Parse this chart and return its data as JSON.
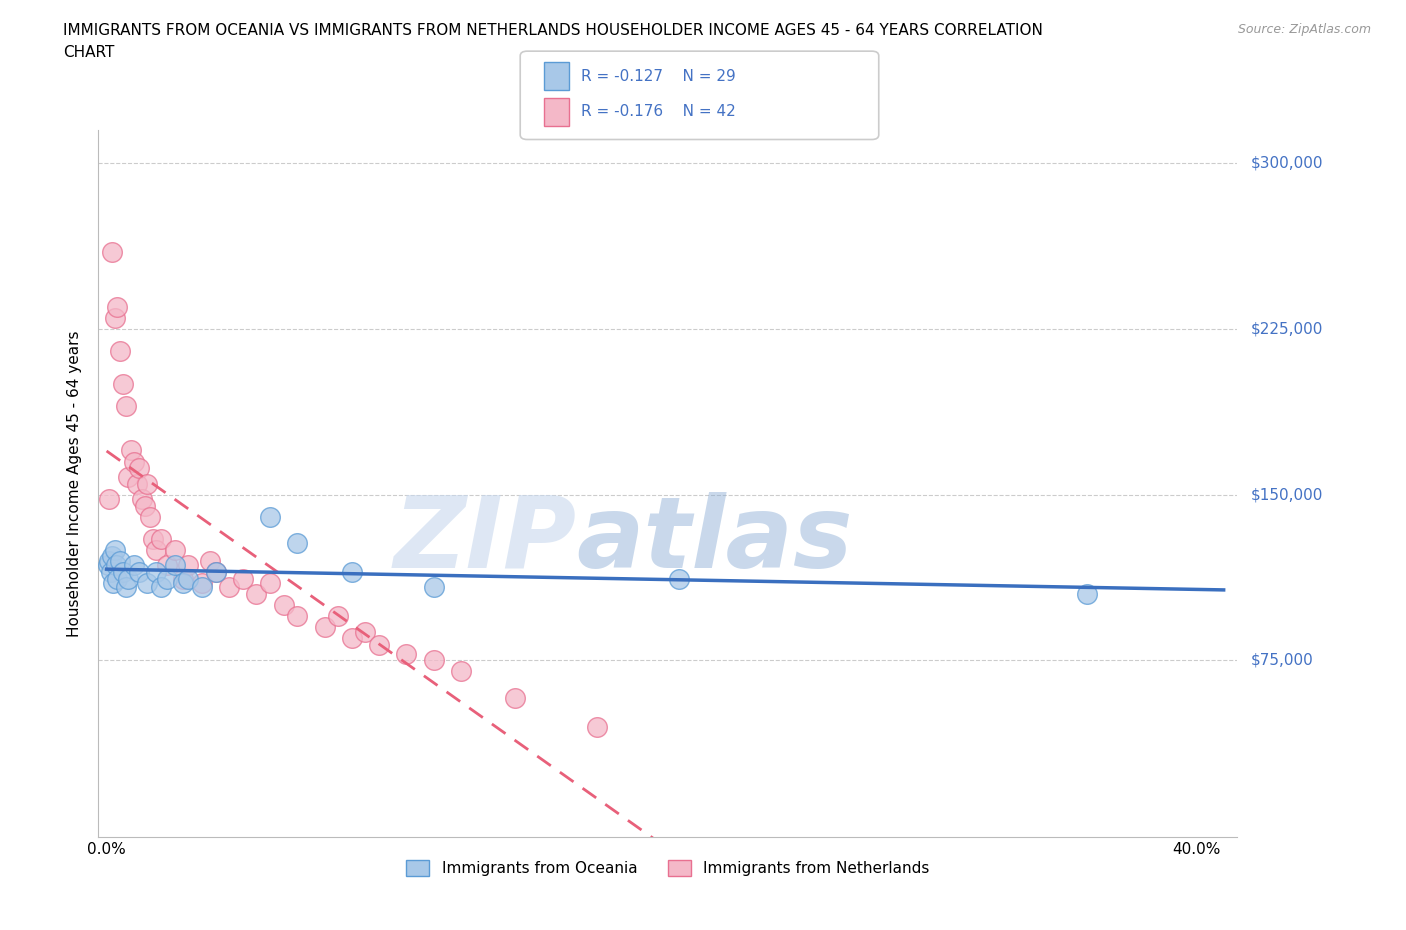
{
  "title_line1": "IMMIGRANTS FROM OCEANIA VS IMMIGRANTS FROM NETHERLANDS HOUSEHOLDER INCOME AGES 45 - 64 YEARS CORRELATION",
  "title_line2": "CHART",
  "source": "Source: ZipAtlas.com",
  "ylabel": "Householder Income Ages 45 - 64 years",
  "y_ticks": [
    0,
    75000,
    150000,
    225000,
    300000
  ],
  "y_tick_labels": [
    "",
    "$75,000",
    "$150,000",
    "$225,000",
    "$300,000"
  ],
  "ylim": [
    -5000,
    315000
  ],
  "xlim": [
    -0.003,
    0.415
  ],
  "color_oceania_fill": "#a8c8e8",
  "color_oceania_edge": "#5b9bd5",
  "color_netherlands_fill": "#f4b8c8",
  "color_netherlands_edge": "#e87090",
  "color_oceania_line": "#3a6fbf",
  "color_netherlands_line": "#e8607a",
  "color_text_blue": "#4472c4",
  "color_grid": "#cccccc",
  "watermark_zip": "ZIP",
  "watermark_atlas": "atlas",
  "legend_labels": [
    "Immigrants from Oceania",
    "Immigrants from Netherlands"
  ],
  "oceania_points": [
    [
      0.0005,
      118000
    ],
    [
      0.001,
      120000
    ],
    [
      0.0015,
      115000
    ],
    [
      0.002,
      122000
    ],
    [
      0.0025,
      110000
    ],
    [
      0.003,
      125000
    ],
    [
      0.0035,
      118000
    ],
    [
      0.004,
      112000
    ],
    [
      0.005,
      120000
    ],
    [
      0.006,
      115000
    ],
    [
      0.007,
      108000
    ],
    [
      0.008,
      112000
    ],
    [
      0.01,
      118000
    ],
    [
      0.012,
      115000
    ],
    [
      0.015,
      110000
    ],
    [
      0.018,
      115000
    ],
    [
      0.02,
      108000
    ],
    [
      0.022,
      112000
    ],
    [
      0.025,
      118000
    ],
    [
      0.028,
      110000
    ],
    [
      0.03,
      112000
    ],
    [
      0.035,
      108000
    ],
    [
      0.04,
      115000
    ],
    [
      0.06,
      140000
    ],
    [
      0.07,
      128000
    ],
    [
      0.09,
      115000
    ],
    [
      0.12,
      108000
    ],
    [
      0.21,
      112000
    ],
    [
      0.36,
      105000
    ]
  ],
  "netherlands_points": [
    [
      0.001,
      148000
    ],
    [
      0.002,
      260000
    ],
    [
      0.003,
      230000
    ],
    [
      0.004,
      235000
    ],
    [
      0.005,
      215000
    ],
    [
      0.006,
      200000
    ],
    [
      0.007,
      190000
    ],
    [
      0.008,
      158000
    ],
    [
      0.009,
      170000
    ],
    [
      0.01,
      165000
    ],
    [
      0.011,
      155000
    ],
    [
      0.012,
      162000
    ],
    [
      0.013,
      148000
    ],
    [
      0.014,
      145000
    ],
    [
      0.015,
      155000
    ],
    [
      0.016,
      140000
    ],
    [
      0.017,
      130000
    ],
    [
      0.018,
      125000
    ],
    [
      0.02,
      130000
    ],
    [
      0.022,
      118000
    ],
    [
      0.025,
      125000
    ],
    [
      0.028,
      112000
    ],
    [
      0.03,
      118000
    ],
    [
      0.035,
      110000
    ],
    [
      0.038,
      120000
    ],
    [
      0.04,
      115000
    ],
    [
      0.045,
      108000
    ],
    [
      0.05,
      112000
    ],
    [
      0.055,
      105000
    ],
    [
      0.06,
      110000
    ],
    [
      0.065,
      100000
    ],
    [
      0.07,
      95000
    ],
    [
      0.08,
      90000
    ],
    [
      0.085,
      95000
    ],
    [
      0.09,
      85000
    ],
    [
      0.095,
      88000
    ],
    [
      0.1,
      82000
    ],
    [
      0.11,
      78000
    ],
    [
      0.12,
      75000
    ],
    [
      0.13,
      70000
    ],
    [
      0.15,
      58000
    ],
    [
      0.18,
      45000
    ]
  ]
}
